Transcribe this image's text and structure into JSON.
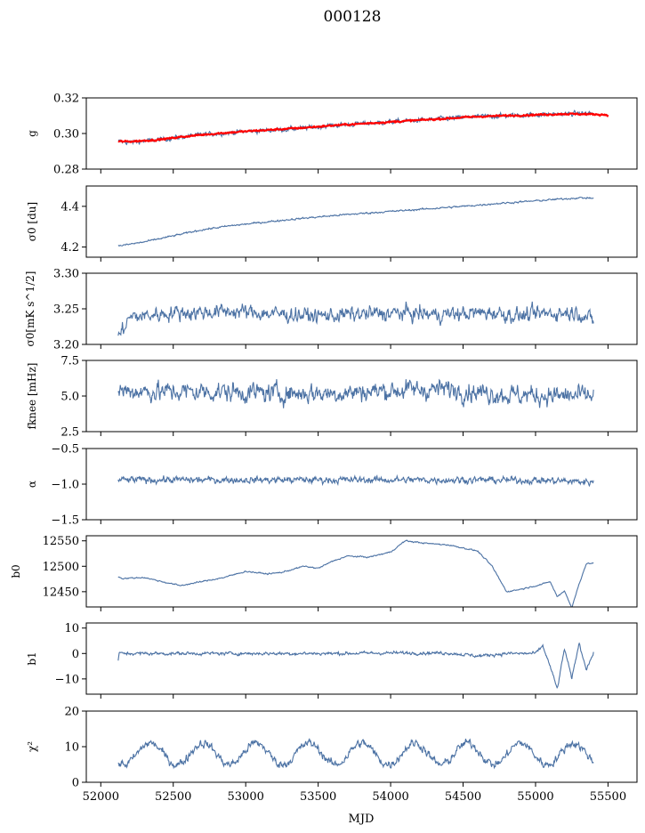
{
  "title": "000128",
  "chart_data": {
    "type": "line",
    "xlabel": "MJD",
    "xlim": [
      51900,
      55700
    ],
    "x_ticks": [
      "52000",
      "52500",
      "53000",
      "53500",
      "54000",
      "54500",
      "55000",
      "55500"
    ],
    "x_tick_values": [
      52000,
      52500,
      53000,
      53500,
      54000,
      54500,
      55000,
      55500
    ],
    "x_range": [
      52120,
      55400
    ],
    "line_color": "#4c72a4",
    "panels": [
      {
        "ylabel": "g",
        "ylim": [
          0.28,
          0.32
        ],
        "y_ticks": [
          "0.28",
          "0.30",
          "0.32"
        ],
        "y_tick_values": [
          0.28,
          0.3,
          0.32
        ],
        "series": [
          {
            "color": "#4c72a4",
            "x": [
              52120,
              52200,
              52400,
              52600,
              52800,
              53000,
              53200,
              53400,
              53600,
              53800,
              54000,
              54200,
              54400,
              54600,
              54800,
              55000,
              55200,
              55400
            ],
            "y": [
              0.2955,
              0.295,
              0.2965,
              0.2985,
              0.3,
              0.301,
              0.302,
              0.303,
              0.3045,
              0.3055,
              0.3065,
              0.3075,
              0.3085,
              0.3095,
              0.31,
              0.3105,
              0.311,
              0.3115
            ],
            "noise": 0.0012
          },
          {
            "color": "#ff0000",
            "x": [
              52120,
              52200,
              52400,
              52600,
              52800,
              53000,
              53200,
              53400,
              53600,
              53800,
              54000,
              54200,
              54400,
              54600,
              54800,
              55000,
              55200,
              55400,
              55500
            ],
            "y": [
              0.2955,
              0.2955,
              0.2965,
              0.2985,
              0.3,
              0.3012,
              0.3022,
              0.3032,
              0.3045,
              0.3055,
              0.3065,
              0.3075,
              0.3085,
              0.3095,
              0.31,
              0.3105,
              0.311,
              0.3108,
              0.3105
            ],
            "noise": 0.0004
          }
        ]
      },
      {
        "ylabel": "σ0 [du]",
        "ylim": [
          4.15,
          4.5
        ],
        "y_ticks": [
          "4.2",
          "4.4"
        ],
        "y_tick_values": [
          4.2,
          4.4
        ],
        "series": [
          {
            "color": "#4c72a4",
            "x": [
              52120,
              52300,
              52500,
              52700,
              52900,
              53100,
              53300,
              53500,
              53700,
              53900,
              54100,
              54300,
              54500,
              54700,
              54900,
              55100,
              55300,
              55400
            ],
            "y": [
              4.205,
              4.225,
              4.255,
              4.285,
              4.305,
              4.32,
              4.335,
              4.348,
              4.36,
              4.37,
              4.38,
              4.39,
              4.4,
              4.412,
              4.422,
              4.432,
              4.442,
              4.44
            ],
            "noise": 0.004
          }
        ]
      },
      {
        "ylabel": "σ0[mK s^1/2]",
        "ylim": [
          3.2,
          3.3
        ],
        "y_ticks": [
          "3.20",
          "3.25",
          "3.30"
        ],
        "y_tick_values": [
          3.2,
          3.25,
          3.3
        ],
        "series": [
          {
            "color": "#4c72a4",
            "x": [
              52120,
              52150,
              52200,
              52300,
              52500,
              52700,
              52900,
              53100,
              53300,
              53500,
              53700,
              53900,
              54100,
              54300,
              54500,
              54700,
              54900,
              55100,
              55300,
              55400
            ],
            "y": [
              3.212,
              3.22,
              3.238,
              3.24,
              3.245,
              3.245,
              3.247,
              3.244,
              3.242,
              3.24,
              3.242,
              3.243,
              3.244,
              3.242,
              3.243,
              3.245,
              3.24,
              3.244,
              3.245,
              3.232
            ],
            "noise": 0.01
          }
        ]
      },
      {
        "ylabel": "fknee [mHz]",
        "ylim": [
          2.5,
          7.5
        ],
        "y_ticks": [
          "2.5",
          "5.0",
          "7.5"
        ],
        "y_tick_values": [
          2.5,
          5.0,
          7.5
        ],
        "series": [
          {
            "color": "#4c72a4",
            "x": [
              52120,
              52400,
              52800,
              53200,
              53600,
              54000,
              54400,
              54800,
              55200,
              55400
            ],
            "y": [
              5.4,
              5.3,
              5.3,
              5.2,
              5.2,
              5.4,
              5.5,
              5.1,
              5.0,
              5.0
            ],
            "noise": 0.65
          }
        ]
      },
      {
        "ylabel": "α",
        "ylim": [
          -1.5,
          -0.5
        ],
        "y_ticks": [
          "−1.5",
          "−1.0",
          "−0.5"
        ],
        "y_tick_values": [
          -1.5,
          -1.0,
          -0.5
        ],
        "series": [
          {
            "color": "#4c72a4",
            "x": [
              52120,
              52600,
              53100,
              53600,
              54100,
              54600,
              55100,
              55400
            ],
            "y": [
              -0.94,
              -0.94,
              -0.94,
              -0.94,
              -0.94,
              -0.94,
              -0.95,
              -0.97
            ],
            "noise": 0.045
          }
        ]
      },
      {
        "ylabel": "b0",
        "ylim": [
          12420,
          12560
        ],
        "y_ticks": [
          "12450",
          "12500",
          "12550"
        ],
        "y_tick_values": [
          12450,
          12500,
          12550
        ],
        "series": [
          {
            "color": "#4c72a4",
            "x": [
              52120,
              52150,
              52300,
              52450,
              52550,
              52700,
              52850,
              53000,
              53150,
              53250,
              53400,
              53500,
              53600,
              53700,
              53850,
              54000,
              54100,
              54250,
              54400,
              54600,
              54700,
              54800,
              54900,
              55050,
              55100,
              55150,
              55200,
              55250,
              55300,
              55350,
              55400
            ],
            "y": [
              12480,
              12476,
              12478,
              12468,
              12462,
              12470,
              12478,
              12490,
              12485,
              12488,
              12500,
              12496,
              12510,
              12520,
              12518,
              12528,
              12550,
              12545,
              12542,
              12530,
              12500,
              12450,
              12455,
              12465,
              12470,
              12440,
              12452,
              12418,
              12465,
              12505,
              12506
            ],
            "noise": 1.2
          }
        ]
      },
      {
        "ylabel": "b1",
        "ylim": [
          -16,
          12
        ],
        "y_ticks": [
          "−10",
          "0",
          "10"
        ],
        "y_tick_values": [
          -10,
          0,
          10
        ],
        "series": [
          {
            "color": "#4c72a4",
            "x": [
              52120,
              52125,
              52140,
              52400,
              52800,
              53200,
              53600,
              54000,
              54400,
              54600,
              54800,
              55000,
              55050,
              55100,
              55150,
              55200,
              55250,
              55300,
              55350,
              55400
            ],
            "y": [
              -3,
              0,
              0,
              0,
              0,
              0,
              0,
              0.2,
              0.2,
              -1,
              0,
              0,
              3,
              -5,
              -14,
              2,
              -10,
              4,
              -6,
              0
            ],
            "noise": 0.6
          }
        ]
      },
      {
        "ylabel": "χ²",
        "ylim": [
          0,
          20
        ],
        "y_ticks": [
          "0",
          "10",
          "20"
        ],
        "y_tick_values": [
          0,
          10,
          20
        ],
        "series": [
          {
            "color": "#4c72a4",
            "x": [
              52120,
              55400
            ],
            "y": [
              8,
              8
            ],
            "periodic": {
              "period": 365,
              "amplitude": 3.0,
              "phase": 52250
            },
            "noise": 1.1
          }
        ]
      }
    ]
  }
}
